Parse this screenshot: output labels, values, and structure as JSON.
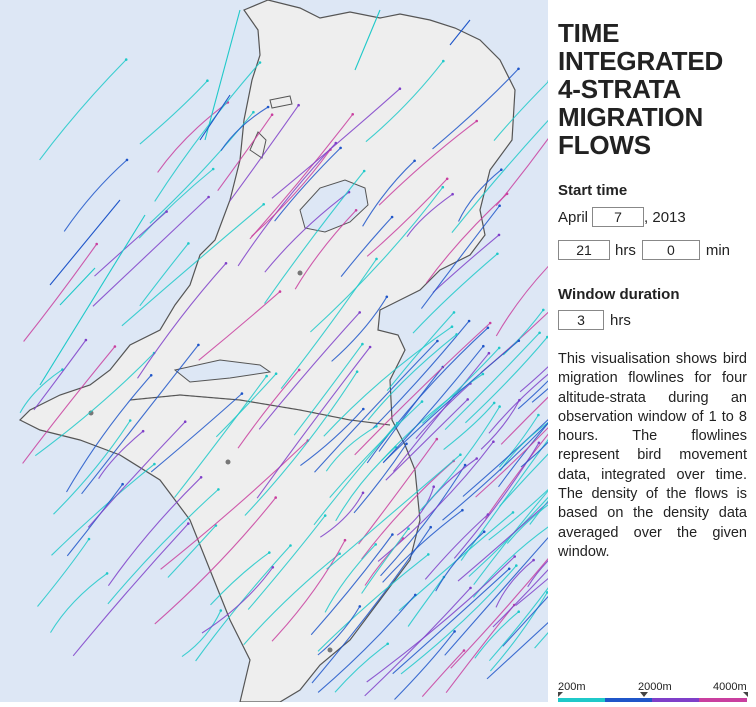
{
  "title": "TIME INTEGRATED 4-STRATA MIGRATION FLOWS",
  "start_time": {
    "label": "Start time",
    "month": "April",
    "day": "7",
    "year_suffix": ", 2013",
    "hours": "21",
    "hours_unit": "hrs",
    "minutes": "0",
    "minutes_unit": "min"
  },
  "window_duration": {
    "label": "Window duration",
    "hours": "3",
    "unit": "hrs"
  },
  "description": "This visualisation shows bird migration flowlines for four altitude-strata during an observation window of 1 to 8 hours. The flowlines represent bird movement data, integrated over time. The density of the flows is based on the density data averaged over the given window.",
  "legend": {
    "ticks": [
      "200m",
      "2000m",
      "4000m"
    ],
    "colors": [
      "#1fc9c9",
      "#1f56c9",
      "#7f3fc9",
      "#c93f9f"
    ]
  },
  "map_colors": {
    "water": "#dde7f5",
    "land": "#eeeeee",
    "border": "#555555",
    "strata": [
      "#1fc9c9",
      "#1f56c9",
      "#7f3fc9",
      "#c93f9f"
    ]
  }
}
